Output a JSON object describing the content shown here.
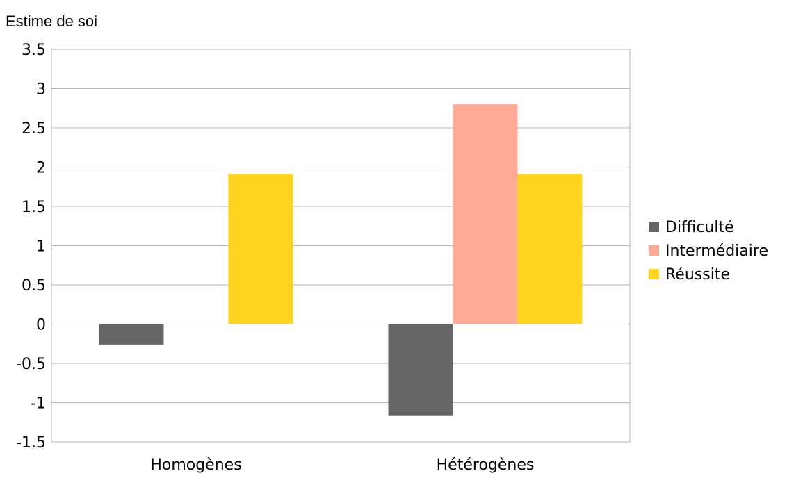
{
  "chart_data": {
    "type": "bar",
    "title": "Estime de soi",
    "xlabel": "",
    "ylabel": "",
    "categories": [
      "Homogènes",
      "Hétérogènes"
    ],
    "series": [
      {
        "name": "Difficulté",
        "color": "#666666",
        "values": [
          -0.26,
          -1.17
        ]
      },
      {
        "name": "Intermédiaire",
        "color": "#ffaa95",
        "values": [
          0,
          2.8
        ]
      },
      {
        "name": "Réussite",
        "color": "#ffd320",
        "values": [
          1.91,
          1.91
        ]
      }
    ],
    "ylim": [
      -1.5,
      3.5
    ],
    "yticks": [
      "3.5",
      "3",
      "2.5",
      "2",
      "1.5",
      "1",
      "0.5",
      "0",
      "-0.5",
      "-1",
      "-1.5"
    ],
    "grid": true,
    "legend_position": "right"
  }
}
